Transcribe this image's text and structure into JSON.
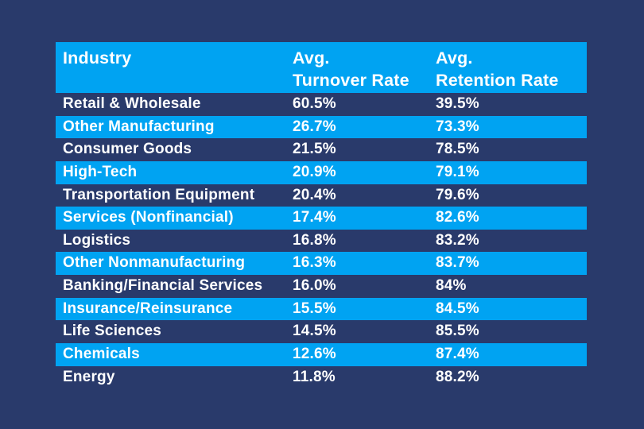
{
  "chart_data": {
    "type": "table",
    "columns": [
      "Industry",
      "Avg. Turnover Rate",
      "Avg. Retention Rate"
    ],
    "rows": [
      [
        "Retail & Wholesale",
        "60.5%",
        "39.5%"
      ],
      [
        "Other Manufacturing",
        "26.7%",
        "73.3%"
      ],
      [
        "Consumer Goods",
        "21.5%",
        "78.5%"
      ],
      [
        "High-Tech",
        "20.9%",
        "79.1%"
      ],
      [
        "Transportation Equipment",
        "20.4%",
        "79.6%"
      ],
      [
        "Services (Nonfinancial)",
        "17.4%",
        "82.6%"
      ],
      [
        "Logistics",
        "16.8%",
        "83.2%"
      ],
      [
        "Other Nonmanufacturing",
        "16.3%",
        "83.7%"
      ],
      [
        "Banking/Financial Services",
        "16.0%",
        "84%"
      ],
      [
        "Insurance/Reinsurance",
        "15.5%",
        "84.5%"
      ],
      [
        "Life Sciences",
        "14.5%",
        "85.5%"
      ],
      [
        "Chemicals",
        "12.6%",
        "87.4%"
      ],
      [
        "Energy",
        "11.8%",
        "88.2%"
      ]
    ]
  },
  "header": {
    "industry": {
      "line1": "Industry",
      "line2": ""
    },
    "turnover": {
      "line1": "Avg.",
      "line2": "Turnover Rate"
    },
    "retention": {
      "line1": "Avg.",
      "line2": "Retention Rate"
    }
  },
  "colors": {
    "page_background": "#293a6b",
    "header_background": "#00a3f2",
    "row_blue": "#00a3f2",
    "row_dark": "#293a6b",
    "text": "#ffffff"
  }
}
